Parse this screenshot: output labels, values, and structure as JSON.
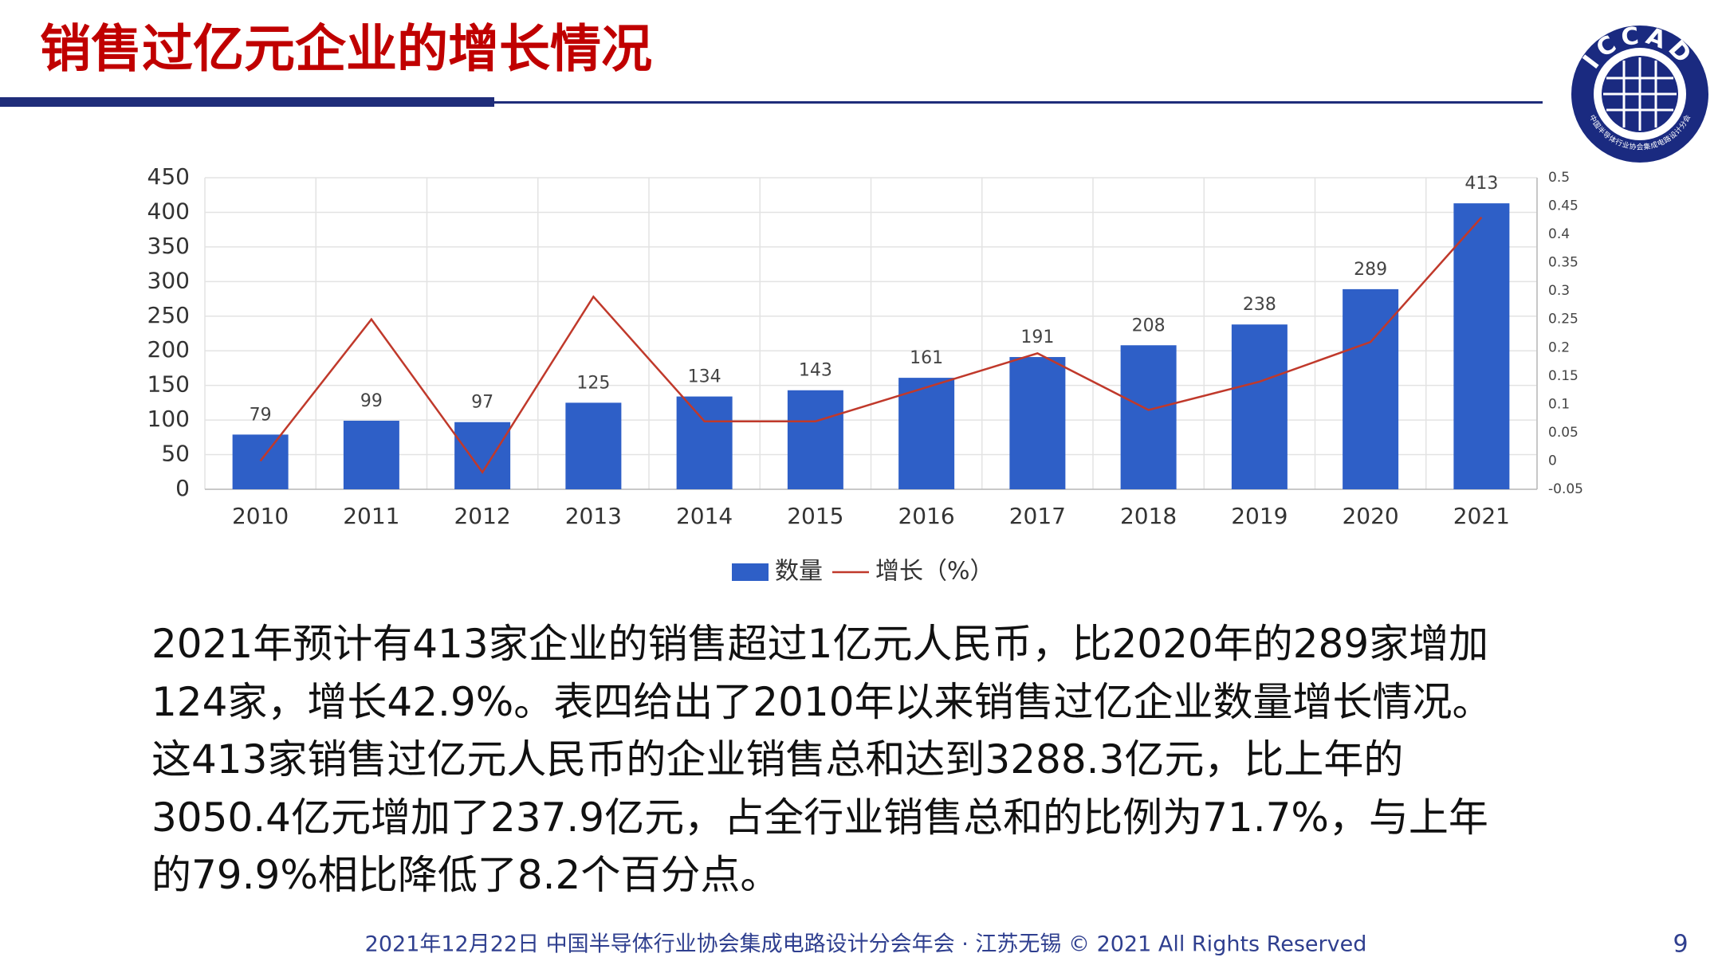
{
  "header": {
    "title": "销售过亿元企业的增长情况"
  },
  "logo": {
    "text": "ICCAD",
    "subtitle": "中国半导体行业协会集成电路设计分会"
  },
  "chart_data": {
    "type": "bar",
    "categories": [
      "2010",
      "2011",
      "2012",
      "2013",
      "2014",
      "2015",
      "2016",
      "2017",
      "2018",
      "2019",
      "2020",
      "2021"
    ],
    "series": [
      {
        "name": "数量",
        "color": "#2e5fc7",
        "values": [
          79,
          99,
          97,
          125,
          134,
          143,
          161,
          191,
          208,
          238,
          289,
          413
        ]
      },
      {
        "name": "增长（%）",
        "color": "#c0392b",
        "axis": "y2",
        "type": "line",
        "values": [
          0,
          0.25,
          -0.02,
          0.29,
          0.07,
          0.07,
          0.13,
          0.19,
          0.09,
          0.14,
          0.21,
          0.43
        ]
      }
    ],
    "ylim": [
      0,
      450
    ],
    "yticks": [
      0,
      50,
      100,
      150,
      200,
      250,
      300,
      350,
      400,
      450
    ],
    "y2lim": [
      -0.05,
      0.5
    ],
    "y2ticks": [
      -0.05,
      0,
      0.05,
      0.1,
      0.15,
      0.2,
      0.25,
      0.3,
      0.35,
      0.4,
      0.45,
      0.5
    ],
    "grid": true,
    "legend": "bottom"
  },
  "body": {
    "lines": [
      "2021年预计有413家企业的销售超过1亿元人民币，比2020年的289家增加",
      "124家，增长42.9%。表四给出了2010年以来销售过亿企业数量增长情况。",
      "这413家销售过亿元人民币的企业销售总和达到3288.3亿元，比上年的",
      "3050.4亿元增加了237.9亿元，占全行业销售总和的比例为71.7%，与上年",
      "的79.9%相比降低了8.2个百分点。"
    ]
  },
  "footer": {
    "text": "2021年12月22日 中国半导体行业协会集成电路设计分会年会 · 江苏无锡 © 2021 All Rights Reserved",
    "page": "9"
  }
}
